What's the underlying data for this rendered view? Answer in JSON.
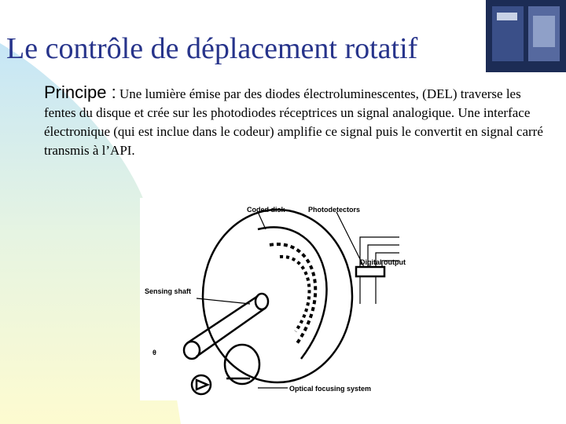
{
  "slide": {
    "title": "Le contrôle de déplacement rotatif",
    "lead": "Principe :",
    "body": "Une lumière émise par des diodes électroluminescentes, (DEL) traverse les fentes du disque et crée sur les photodiodes réceptrices un signal analogique. Une interface électronique (qui est inclue dans le codeur) amplifie ce signal puis le convertit en signal carré transmis à l’API.",
    "diagram": {
      "coded_disk": "Coded disk",
      "photodetectors": "Photodetectors",
      "digital_output": "Digital output",
      "sensing_shaft": "Sensing shaft",
      "theta": "θ",
      "optical_system": "Optical focusing system"
    }
  }
}
